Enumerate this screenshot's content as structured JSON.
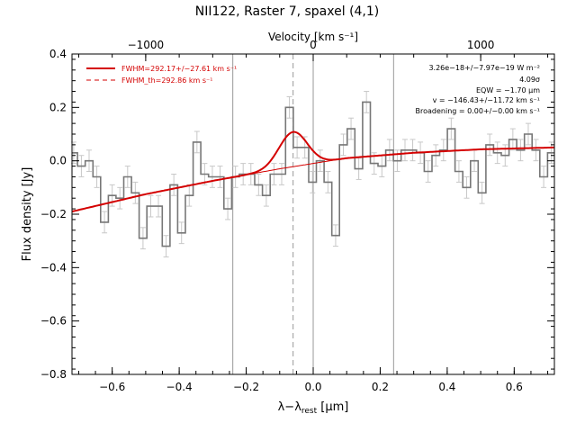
{
  "chart_data": {
    "type": "line",
    "title": "NII122, Raster 7, spaxel (4,1)",
    "xlabel_main": "λ−λ",
    "xlabel_sub": "rest",
    "xlabel_unit": " [μm]",
    "ylabel": "Flux density [Jy]",
    "top_axis_label": "Velocity [km s⁻¹]",
    "top_axis_ticks": [
      {
        "label": "−1000",
        "x": -0.5
      },
      {
        "label": "0",
        "x": 0.0
      },
      {
        "label": "1000",
        "x": 0.5
      }
    ],
    "xlim": [
      -0.72,
      0.72
    ],
    "ylim": [
      -0.8,
      0.4
    ],
    "xticks": [
      -0.6,
      -0.4,
      -0.2,
      0.0,
      0.2,
      0.4,
      0.6
    ],
    "xtick_labels": [
      "−0.6",
      "−0.4",
      "−0.2",
      "0.0",
      "0.2",
      "0.4",
      "0.6"
    ],
    "yticks": [
      -0.8,
      -0.6,
      -0.4,
      -0.2,
      0.0,
      0.2,
      0.4
    ],
    "ytick_labels": [
      "−0.8",
      "−0.6",
      "−0.4",
      "−0.2",
      "0.0",
      "0.2",
      "0.4"
    ],
    "vertical_lines": [
      {
        "x": -0.24,
        "style": "solid",
        "color": "#999999"
      },
      {
        "x": -0.06,
        "style": "dashed",
        "color": "#999999"
      },
      {
        "x": 0.0,
        "style": "solid",
        "color": "#999999"
      },
      {
        "x": 0.24,
        "style": "solid",
        "color": "#999999"
      }
    ],
    "series": [
      {
        "name": "",
        "style": "steps",
        "color": "#777777",
        "x": [
          -0.715,
          -0.692,
          -0.669,
          -0.646,
          -0.623,
          -0.6,
          -0.577,
          -0.554,
          -0.531,
          -0.508,
          -0.485,
          -0.462,
          -0.439,
          -0.416,
          -0.393,
          -0.37,
          -0.347,
          -0.324,
          -0.301,
          -0.278,
          -0.255,
          -0.232,
          -0.209,
          -0.186,
          -0.163,
          -0.14,
          -0.117,
          -0.094,
          -0.071,
          -0.048,
          -0.025,
          -0.002,
          0.021,
          0.044,
          0.067,
          0.09,
          0.113,
          0.136,
          0.159,
          0.182,
          0.205,
          0.228,
          0.251,
          0.274,
          0.297,
          0.32,
          0.343,
          0.366,
          0.389,
          0.412,
          0.435,
          0.458,
          0.481,
          0.504,
          0.527,
          0.55,
          0.573,
          0.596,
          0.619,
          0.642,
          0.665,
          0.688,
          0.711
        ],
        "y": [
          0.03,
          -0.02,
          0.0,
          -0.06,
          -0.23,
          -0.13,
          -0.14,
          -0.06,
          -0.12,
          -0.29,
          -0.17,
          -0.17,
          -0.32,
          -0.09,
          -0.27,
          -0.13,
          0.07,
          -0.05,
          -0.06,
          -0.06,
          -0.18,
          -0.06,
          -0.05,
          -0.05,
          -0.09,
          -0.13,
          -0.05,
          -0.05,
          0.2,
          0.05,
          0.05,
          -0.08,
          0.0,
          -0.08,
          -0.28,
          0.06,
          0.12,
          -0.03,
          0.22,
          -0.01,
          -0.02,
          0.04,
          0.0,
          0.04,
          0.04,
          0.03,
          -0.04,
          0.02,
          0.04,
          0.12,
          -0.04,
          -0.1,
          0.0,
          -0.12,
          0.06,
          0.03,
          0.02,
          0.08,
          0.04,
          0.1,
          0.04,
          -0.06,
          0.03
        ],
        "error": 0.04
      },
      {
        "name": "",
        "style": "line",
        "color": "#d40000",
        "gaussian": {
          "center": -0.06,
          "amplitude": 0.13,
          "sigma": 0.042
        },
        "baseline": [
          [
            -0.72,
            -0.19
          ],
          [
            -0.5,
            -0.125
          ],
          [
            -0.3,
            -0.075
          ],
          [
            -0.1,
            -0.03
          ],
          [
            0.1,
            0.01
          ],
          [
            0.3,
            0.03
          ],
          [
            0.5,
            0.043
          ],
          [
            0.72,
            0.05
          ]
        ]
      }
    ],
    "legend": {
      "placement": "top-left",
      "entries": [
        {
          "text": "FWHM=292.17+/−27.61 km s⁻¹",
          "style": "solid"
        },
        {
          "text": "FWHM_th=292.86 km s⁻¹",
          "style": "dashed"
        }
      ]
    },
    "annotations": [
      "3.26e−18+/−7.97e−19 W m⁻²",
      "4.09σ",
      "EQW = −1.70 μm",
      "v = −146.43+/−11.72 km s⁻¹",
      "Broadening = 0.00+/−0.00 km s⁻¹"
    ],
    "grid": false
  }
}
